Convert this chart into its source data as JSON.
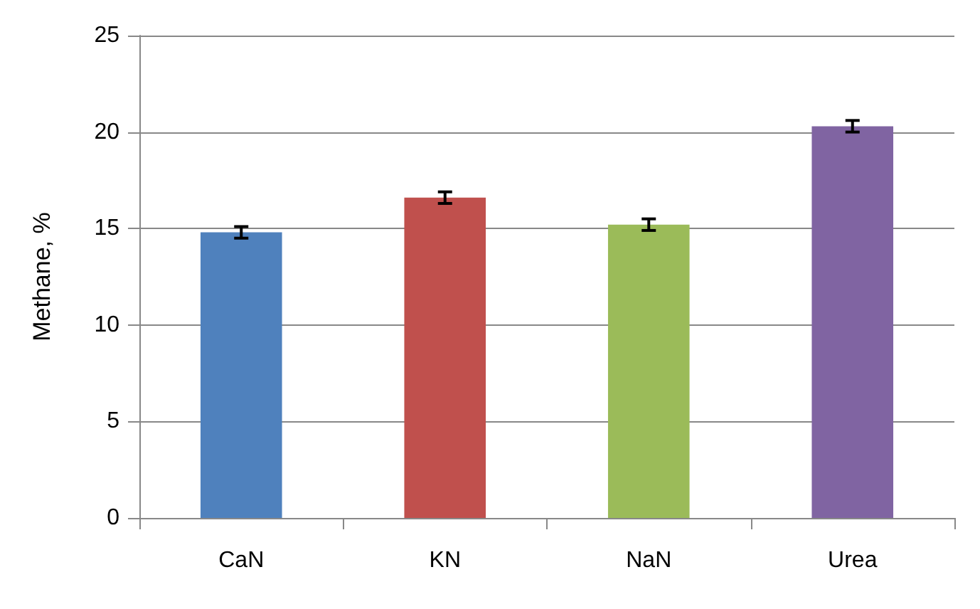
{
  "chart_data": {
    "type": "bar",
    "ylabel": "Methane, %",
    "categories": [
      "CaN",
      "KN",
      "NaN",
      "Urea"
    ],
    "values": [
      14.8,
      16.6,
      15.2,
      20.3
    ],
    "colors": [
      "#4f81bd",
      "#c0504d",
      "#9bbb59",
      "#8064a2"
    ],
    "errors": [
      0.3,
      0.3,
      0.3,
      0.3
    ],
    "ylim": [
      0,
      25
    ],
    "yticks": [
      0,
      5,
      10,
      15,
      20,
      25
    ],
    "grid": "y"
  }
}
